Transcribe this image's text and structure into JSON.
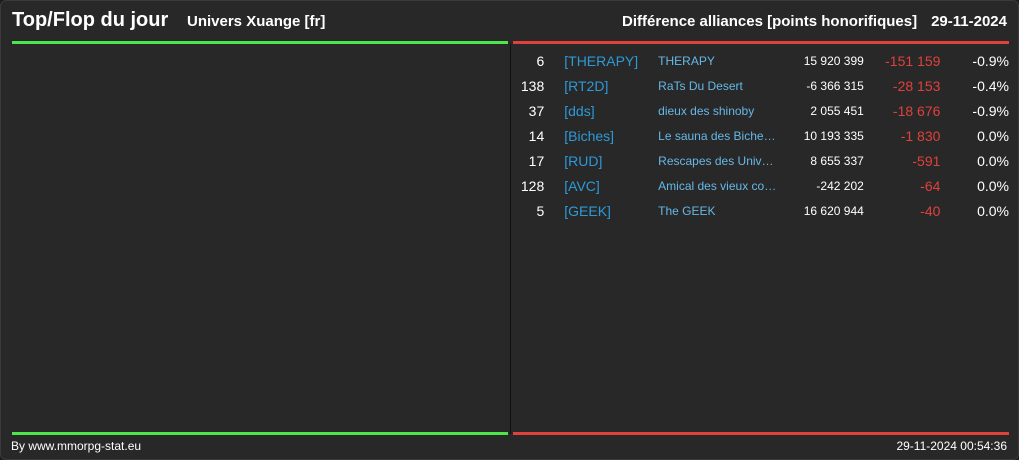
{
  "header": {
    "title": "Top/Flop du jour",
    "subtitle": "Univers Xuange [fr]",
    "right_title": "Différence alliances [points honorifiques]",
    "date": "29-11-2024"
  },
  "colors": {
    "top_accent": "#4ce64c",
    "flop_accent": "#e0413b",
    "tag_blue": "#2d9ad8",
    "name_blue": "#66b8e8"
  },
  "flop": {
    "rows": [
      {
        "rank": "6",
        "tag": "[THERAPY]",
        "name": "THERAPY",
        "points": "15 920 399",
        "diff": "-151 159",
        "pct": "-0.9%"
      },
      {
        "rank": "138",
        "tag": "[RT2D]",
        "name": "RaTs Du Desert",
        "points": "-6 366 315",
        "diff": "-28 153",
        "pct": "-0.4%"
      },
      {
        "rank": "37",
        "tag": "[dds]",
        "name": "dieux des shinoby",
        "points": "2 055 451",
        "diff": "-18 676",
        "pct": "-0.9%"
      },
      {
        "rank": "14",
        "tag": "[Biches]",
        "name": "Le sauna des Biche…",
        "points": "10 193 335",
        "diff": "-1 830",
        "pct": "0.0%"
      },
      {
        "rank": "17",
        "tag": "[RUD]",
        "name": "Rescapes des Univ…",
        "points": "8 655 337",
        "diff": "-591",
        "pct": "0.0%"
      },
      {
        "rank": "128",
        "tag": "[AVC]",
        "name": "Amical des vieux co…",
        "points": "-242 202",
        "diff": "-64",
        "pct": "0.0%"
      },
      {
        "rank": "5",
        "tag": "[GEEK]",
        "name": "The GEEK",
        "points": "16 620 944",
        "diff": "-40",
        "pct": "0.0%"
      }
    ]
  },
  "footer": {
    "credit": "By www.mmorpg-stat.eu",
    "timestamp": "29-11-2024 00:54:36"
  }
}
